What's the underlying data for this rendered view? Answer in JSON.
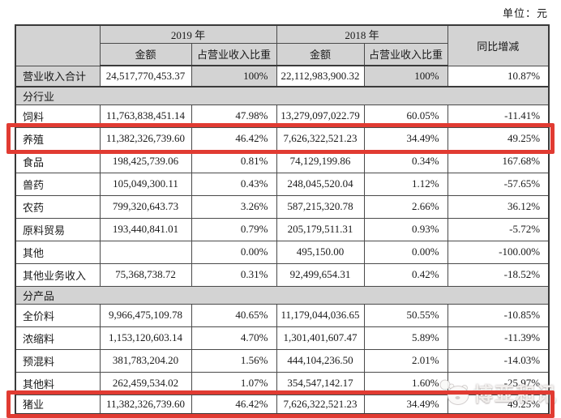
{
  "unit_label": "单位：元",
  "table": {
    "header": {
      "year_2019": "2019 年",
      "year_2018": "2018 年",
      "yoy": "同比增减",
      "amount": "金额",
      "pct": "占营业收入比重"
    },
    "rows": [
      {
        "type": "data",
        "label": "营业收入合计",
        "a2019": "24,517,770,453.37",
        "p2019": "100%",
        "a2018": "22,112,983,900.32",
        "p2018": "100%",
        "yoy": "10.87%",
        "shaded": true
      },
      {
        "type": "section",
        "label": "分行业"
      },
      {
        "type": "data",
        "label": "饲料",
        "a2019": "11,763,838,451.14",
        "p2019": "47.98%",
        "a2018": "13,279,097,022.79",
        "p2018": "60.05%",
        "yoy": "-11.41%"
      },
      {
        "type": "data",
        "label": "养殖",
        "a2019": "11,382,326,739.60",
        "p2019": "46.42%",
        "a2018": "7,626,322,521.23",
        "p2018": "34.49%",
        "yoy": "49.25%",
        "highlighted": true
      },
      {
        "type": "data",
        "label": "食品",
        "a2019": "198,425,739.06",
        "p2019": "0.81%",
        "a2018": "74,129,199.86",
        "p2018": "0.34%",
        "yoy": "167.68%"
      },
      {
        "type": "data",
        "label": "兽药",
        "a2019": "105,049,300.11",
        "p2019": "0.43%",
        "a2018": "248,045,520.04",
        "p2018": "1.12%",
        "yoy": "-57.65%"
      },
      {
        "type": "data",
        "label": "农药",
        "a2019": "799,320,643.73",
        "p2019": "3.26%",
        "a2018": "587,215,320.78",
        "p2018": "2.66%",
        "yoy": "36.12%"
      },
      {
        "type": "data",
        "label": "原料贸易",
        "a2019": "193,440,841.01",
        "p2019": "0.79%",
        "a2018": "205,179,511.31",
        "p2018": "0.93%",
        "yoy": "-5.72%"
      },
      {
        "type": "data",
        "label": "其他",
        "a2019": "",
        "p2019": "0.00%",
        "a2018": "495,150.00",
        "p2018": "0.00%",
        "yoy": "-100.00%"
      },
      {
        "type": "data",
        "label": "其他业务收入",
        "a2019": "75,368,738.72",
        "p2019": "0.31%",
        "a2018": "92,499,654.31",
        "p2018": "0.42%",
        "yoy": "-18.52%"
      },
      {
        "type": "section",
        "label": "分产品"
      },
      {
        "type": "data",
        "label": "全价料",
        "a2019": "9,966,475,109.78",
        "p2019": "40.65%",
        "a2018": "11,179,044,036.65",
        "p2018": "50.55%",
        "yoy": "-10.85%"
      },
      {
        "type": "data",
        "label": "浓缩料",
        "a2019": "1,153,120,603.14",
        "p2019": "4.70%",
        "a2018": "1,301,401,607.47",
        "p2018": "5.89%",
        "yoy": "-11.39%"
      },
      {
        "type": "data",
        "label": "预混料",
        "a2019": "381,783,204.20",
        "p2019": "1.56%",
        "a2018": "444,104,236.50",
        "p2018": "2.01%",
        "yoy": "-14.03%"
      },
      {
        "type": "data",
        "label": "其他料",
        "a2019": "262,459,534.02",
        "p2019": "1.07%",
        "a2018": "354,547,142.17",
        "p2018": "1.60%",
        "yoy": "-25.97%"
      },
      {
        "type": "data",
        "label": "猪业",
        "a2019": "11,382,326,739.60",
        "p2019": "46.42%",
        "a2018": "7,626,322,521.23",
        "p2018": "34.49%",
        "yoy": "49.25%",
        "highlighted": true
      }
    ]
  },
  "watermark": {
    "text": "博亚和讯",
    "logo": "panda-mascot-logo"
  },
  "colors": {
    "header_gray": "#d3d3d3",
    "highlight_red": "#e13b32",
    "border_dark": "#3a3a3a",
    "page_background": "#ffffff"
  }
}
